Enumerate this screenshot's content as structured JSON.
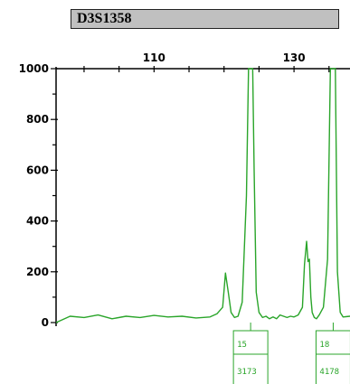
{
  "locus": {
    "name": "D3S1358"
  },
  "chart_data": {
    "type": "line",
    "xlim": [
      96,
      138
    ],
    "ylim": [
      0,
      1000
    ],
    "x_ticks": [
      110,
      130
    ],
    "x_tick_labels": [
      "110",
      "130"
    ],
    "y_ticks": [
      0,
      200,
      400,
      600,
      800,
      1000
    ],
    "y_tick_labels": [
      "0",
      "200",
      "400",
      "600",
      "800",
      "1000"
    ],
    "grid": false,
    "line_color": "#2aa52a",
    "series": [
      {
        "x": [
          96.0,
          98.0,
          100.0,
          102.0,
          104.0,
          106.0,
          108.0,
          110.0,
          112.0,
          114.0,
          116.0,
          118.0,
          119.0,
          119.8,
          120.2,
          120.6,
          121.0,
          121.5,
          122.0,
          122.6,
          123.2,
          123.5,
          123.7,
          123.9,
          124.1,
          124.3,
          124.6,
          125.0,
          125.5,
          126.0,
          126.5,
          127.0,
          127.5,
          128.0,
          129.0,
          129.5,
          130.0,
          130.6,
          131.2,
          131.5,
          131.8,
          132.0,
          132.2,
          132.4,
          132.6,
          132.9,
          133.2,
          133.6,
          134.2,
          134.8,
          135.2,
          135.6,
          135.9,
          136.2,
          136.6,
          137.0,
          138.0
        ],
        "y": [
          0,
          25,
          20,
          30,
          15,
          25,
          20,
          28,
          22,
          25,
          18,
          22,
          35,
          60,
          195,
          120,
          40,
          20,
          25,
          80,
          500,
          1000,
          1000,
          1000,
          1000,
          600,
          120,
          40,
          20,
          25,
          15,
          22,
          15,
          30,
          20,
          25,
          22,
          30,
          60,
          230,
          320,
          240,
          250,
          100,
          40,
          20,
          15,
          30,
          60,
          250,
          1000,
          1000,
          1000,
          200,
          40,
          22,
          25
        ]
      }
    ],
    "alleles": [
      {
        "x": 123.8,
        "allele": "15",
        "height": "3173"
      },
      {
        "x": 135.6,
        "allele": "18",
        "height": "4178"
      }
    ]
  }
}
